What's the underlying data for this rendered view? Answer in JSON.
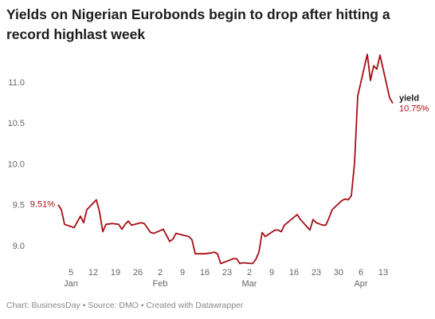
{
  "chart_data": {
    "type": "line",
    "title": "Yields on Nigerian Eurobonds begin to drop after hitting a record highlast week",
    "footer": "Chart: BusinessDay • Source: DMO • Created with Datawrapper",
    "x": [
      1,
      2,
      3,
      6,
      8,
      9,
      10,
      13,
      14,
      15,
      16,
      18,
      20,
      21,
      22,
      23,
      24,
      27,
      28,
      30,
      31,
      34,
      36,
      37,
      38,
      40,
      42,
      43,
      44,
      47,
      49,
      50,
      51,
      52,
      54,
      56,
      57,
      58,
      59,
      62,
      63,
      64,
      65,
      66,
      69,
      70,
      71,
      72,
      76,
      77,
      80,
      81,
      82,
      84,
      85,
      86,
      87,
      90,
      91,
      92,
      93,
      94,
      95,
      98,
      99,
      100,
      101,
      102,
      105,
      106
    ],
    "series": [
      {
        "name": "yield",
        "color": "#a50f15",
        "values": [
          9.51,
          9.45,
          9.27,
          9.23,
          9.37,
          9.29,
          9.45,
          9.57,
          9.42,
          9.18,
          9.27,
          9.28,
          9.27,
          9.21,
          9.27,
          9.31,
          9.26,
          9.29,
          9.28,
          9.17,
          9.16,
          9.21,
          9.06,
          9.09,
          9.16,
          9.14,
          9.12,
          9.08,
          8.91,
          8.91,
          8.92,
          8.93,
          8.91,
          8.79,
          8.82,
          8.85,
          8.85,
          8.79,
          8.8,
          8.79,
          8.84,
          8.93,
          9.17,
          9.12,
          9.2,
          9.2,
          9.18,
          9.26,
          9.39,
          9.33,
          9.2,
          9.33,
          9.29,
          9.26,
          9.26,
          9.35,
          9.45,
          9.56,
          9.58,
          9.57,
          9.62,
          10.02,
          10.84,
          11.35,
          11.03,
          11.21,
          11.17,
          11.34,
          10.82,
          10.75
        ],
        "value_labels": [
          "9.51%",
          null,
          null,
          null,
          null,
          null,
          null,
          null,
          null,
          null,
          null,
          null,
          null,
          null,
          null,
          null,
          null,
          null,
          null,
          null,
          null,
          null,
          null,
          null,
          null,
          null,
          null,
          null,
          null,
          null,
          null,
          null,
          null,
          null,
          null,
          null,
          null,
          null,
          null,
          null,
          null,
          null,
          null,
          null,
          null,
          null,
          null,
          null,
          null,
          null,
          null,
          null,
          null,
          null,
          null,
          null,
          null,
          null,
          null,
          null,
          null,
          null,
          null,
          null,
          null,
          null,
          null,
          null,
          null,
          "10.75%"
        ]
      }
    ],
    "xlim": [
      -1,
      107
    ],
    "xticks": [
      5,
      12,
      19,
      26,
      {
        "value": 33,
        "label": "2"
      },
      {
        "value": 40,
        "label": "9"
      },
      {
        "value": 47,
        "label": "16"
      },
      {
        "value": 54,
        "label": "23"
      },
      {
        "value": 61,
        "label": "2"
      },
      {
        "value": 68,
        "label": "9"
      },
      {
        "value": 75,
        "label": "16"
      },
      {
        "value": 82,
        "label": "23"
      },
      {
        "value": 89,
        "label": "30"
      },
      {
        "value": 96,
        "label": "6"
      },
      {
        "value": 103,
        "label": "13"
      }
    ],
    "month_labels": [
      {
        "value": 5,
        "label": "Jan"
      },
      {
        "value": 33,
        "label": "Feb"
      },
      {
        "value": 61,
        "label": "Mar"
      },
      {
        "value": 96,
        "label": "Apr"
      }
    ],
    "ylim": [
      8.75,
      11.4
    ],
    "yticks": [
      {
        "value": 9,
        "label": "9.0"
      },
      9.5,
      {
        "value": 10,
        "label": "10.0"
      },
      10.5,
      {
        "value": 11,
        "label": "11.0"
      }
    ],
    "grid": false
  }
}
